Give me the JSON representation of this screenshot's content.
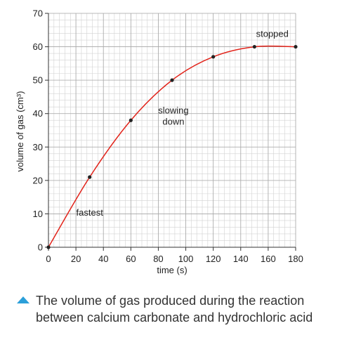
{
  "chart_data": {
    "type": "line",
    "xlabel": "time (s)",
    "ylabel": "volume of gas (cm³)",
    "xlim": [
      0,
      180
    ],
    "ylim": [
      0,
      70
    ],
    "x_ticks": [
      0,
      20,
      40,
      60,
      80,
      100,
      120,
      140,
      160,
      180
    ],
    "y_ticks": [
      0,
      10,
      20,
      30,
      40,
      50,
      60,
      70
    ],
    "grid": true,
    "series": [
      {
        "color": "#e2231a",
        "marker_color": "#222222",
        "x": [
          0,
          30,
          60,
          90,
          120,
          150,
          180
        ],
        "y": [
          0,
          21,
          38,
          50,
          57,
          60,
          60
        ]
      }
    ],
    "annotations": [
      {
        "text": "fastest",
        "x": 30,
        "y": 9.5
      },
      {
        "text": "slowing down",
        "lines": [
          "slowing",
          "down"
        ],
        "x": 91,
        "y": 40
      },
      {
        "text": "stopped",
        "x": 163,
        "y": 63
      }
    ]
  },
  "caption": {
    "icon": "triangle-up-icon",
    "icon_color": "#2b9fd9",
    "text": "The volume of gas produced during the reaction between calcium carbonate and hydrochloric acid"
  }
}
